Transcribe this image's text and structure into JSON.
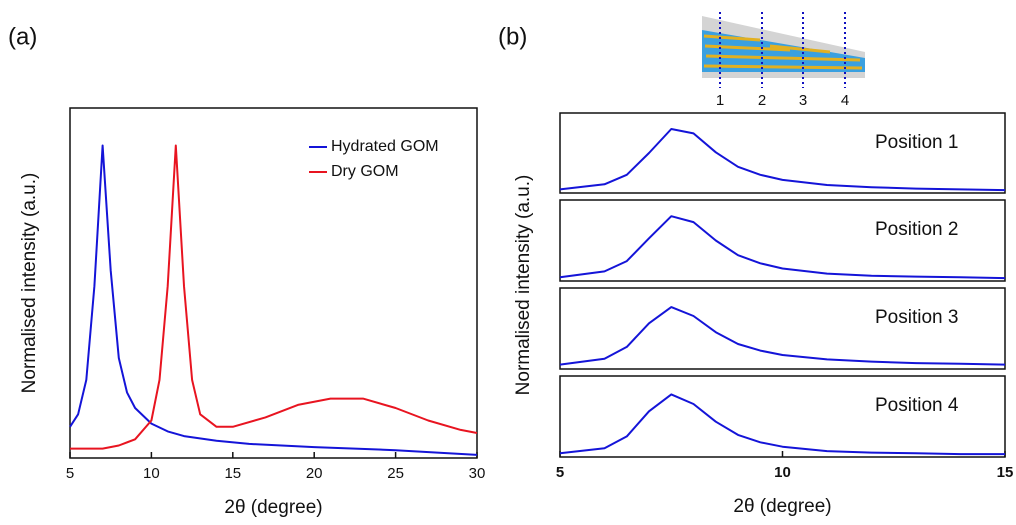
{
  "chart_data": [
    {
      "type": "line",
      "panel_label": "(a)",
      "xlabel": "2θ (degree)",
      "ylabel": "Normalised intensity (a.u.)",
      "xlim": [
        5,
        30
      ],
      "xticks": [
        5,
        10,
        15,
        20,
        25,
        30
      ],
      "ylim": [
        0,
        1.12
      ],
      "legend": "upper right",
      "series": [
        {
          "name": "Hydrated GOM",
          "color": "#1414d8",
          "x": [
            5,
            5.5,
            6,
            6.5,
            7,
            7.5,
            8,
            8.5,
            9,
            10,
            11,
            12,
            14,
            16,
            18,
            20,
            25,
            30
          ],
          "values": [
            0.1,
            0.14,
            0.25,
            0.55,
            1.0,
            0.6,
            0.32,
            0.21,
            0.16,
            0.11,
            0.085,
            0.07,
            0.055,
            0.045,
            0.04,
            0.035,
            0.025,
            0.01
          ]
        },
        {
          "name": "Dry GOM",
          "color": "#e81420",
          "x": [
            5,
            7,
            8,
            9,
            10,
            10.5,
            11,
            11.5,
            12,
            12.5,
            13,
            14,
            15,
            17,
            19,
            21,
            23,
            25,
            27,
            29,
            30
          ],
          "values": [
            0.03,
            0.03,
            0.04,
            0.06,
            0.12,
            0.25,
            0.55,
            1.0,
            0.55,
            0.25,
            0.14,
            0.1,
            0.1,
            0.13,
            0.17,
            0.19,
            0.19,
            0.16,
            0.12,
            0.09,
            0.08
          ]
        }
      ]
    },
    {
      "type": "line",
      "annotation": "Position 1",
      "xlim": [
        5,
        15
      ],
      "ylim": [
        0,
        1.1
      ],
      "series": [
        {
          "color": "#1414d8",
          "x": [
            5,
            6,
            6.5,
            7,
            7.5,
            8,
            8.5,
            9,
            9.5,
            10,
            11,
            12,
            13,
            14,
            15
          ],
          "values": [
            0.05,
            0.12,
            0.25,
            0.55,
            0.88,
            0.82,
            0.56,
            0.36,
            0.25,
            0.18,
            0.11,
            0.08,
            0.06,
            0.05,
            0.04
          ]
        }
      ]
    },
    {
      "type": "line",
      "annotation": "Position 2",
      "xlim": [
        5,
        15
      ],
      "ylim": [
        0,
        1.1
      ],
      "series": [
        {
          "color": "#1414d8",
          "x": [
            5,
            6,
            6.5,
            7,
            7.5,
            8,
            8.5,
            9,
            9.5,
            10,
            11,
            12,
            13,
            14,
            15
          ],
          "values": [
            0.05,
            0.13,
            0.27,
            0.58,
            0.88,
            0.8,
            0.55,
            0.35,
            0.24,
            0.17,
            0.1,
            0.07,
            0.06,
            0.05,
            0.04
          ]
        }
      ]
    },
    {
      "type": "line",
      "annotation": "Position 3",
      "xlim": [
        5,
        15
      ],
      "ylim": [
        0,
        1.1
      ],
      "series": [
        {
          "color": "#1414d8",
          "x": [
            5,
            6,
            6.5,
            7,
            7.5,
            8,
            8.5,
            9,
            9.5,
            10,
            11,
            12,
            13,
            14,
            15
          ],
          "values": [
            0.06,
            0.14,
            0.3,
            0.62,
            0.84,
            0.72,
            0.5,
            0.34,
            0.25,
            0.19,
            0.13,
            0.1,
            0.08,
            0.07,
            0.06
          ]
        }
      ]
    },
    {
      "type": "line",
      "annotation": "Position 4",
      "xlabel": "2θ (degree)",
      "xlim": [
        5,
        15
      ],
      "xticks": [
        5,
        10,
        15
      ],
      "ylim": [
        0,
        1.1
      ],
      "series": [
        {
          "color": "#1414d8",
          "x": [
            5,
            6,
            6.5,
            7,
            7.5,
            8,
            8.5,
            9,
            9.5,
            10,
            11,
            12,
            13,
            14,
            15
          ],
          "values": [
            0.05,
            0.12,
            0.28,
            0.62,
            0.85,
            0.72,
            0.48,
            0.3,
            0.2,
            0.14,
            0.08,
            0.06,
            0.05,
            0.04,
            0.04
          ]
        }
      ]
    }
  ],
  "panel_b": {
    "label": "(b)",
    "ylabel": "Normalised intensity (a.u.)",
    "schematic_labels": [
      "1",
      "2",
      "3",
      "4"
    ]
  }
}
